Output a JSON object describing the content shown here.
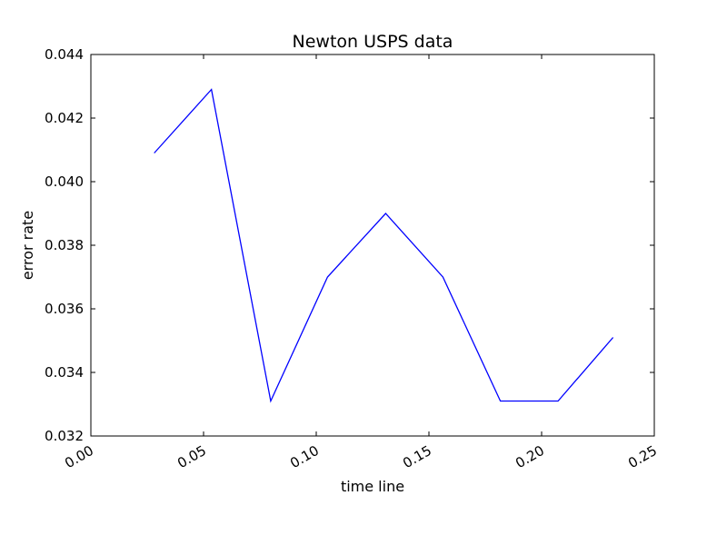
{
  "chart_data": {
    "type": "line",
    "title": "Newton USPS data",
    "xlabel": "time line",
    "ylabel": "error rate",
    "xlim": [
      0.0,
      0.25
    ],
    "ylim": [
      0.032,
      0.044
    ],
    "grid": false,
    "xticks": [
      "0.00",
      "0.05",
      "0.10",
      "0.15",
      "0.20",
      "0.25"
    ],
    "yticks": [
      "0.032",
      "0.034",
      "0.036",
      "0.038",
      "0.040",
      "0.042",
      "0.044"
    ],
    "series": [
      {
        "color": "#0000ff",
        "x": [
          0.0281,
          0.0535,
          0.0798,
          0.105,
          0.1308,
          0.1562,
          0.1817,
          0.2073,
          0.2317
        ],
        "y": [
          0.0409,
          0.0429,
          0.0331,
          0.037,
          0.039,
          0.037,
          0.0331,
          0.0331,
          0.0351
        ]
      }
    ]
  }
}
